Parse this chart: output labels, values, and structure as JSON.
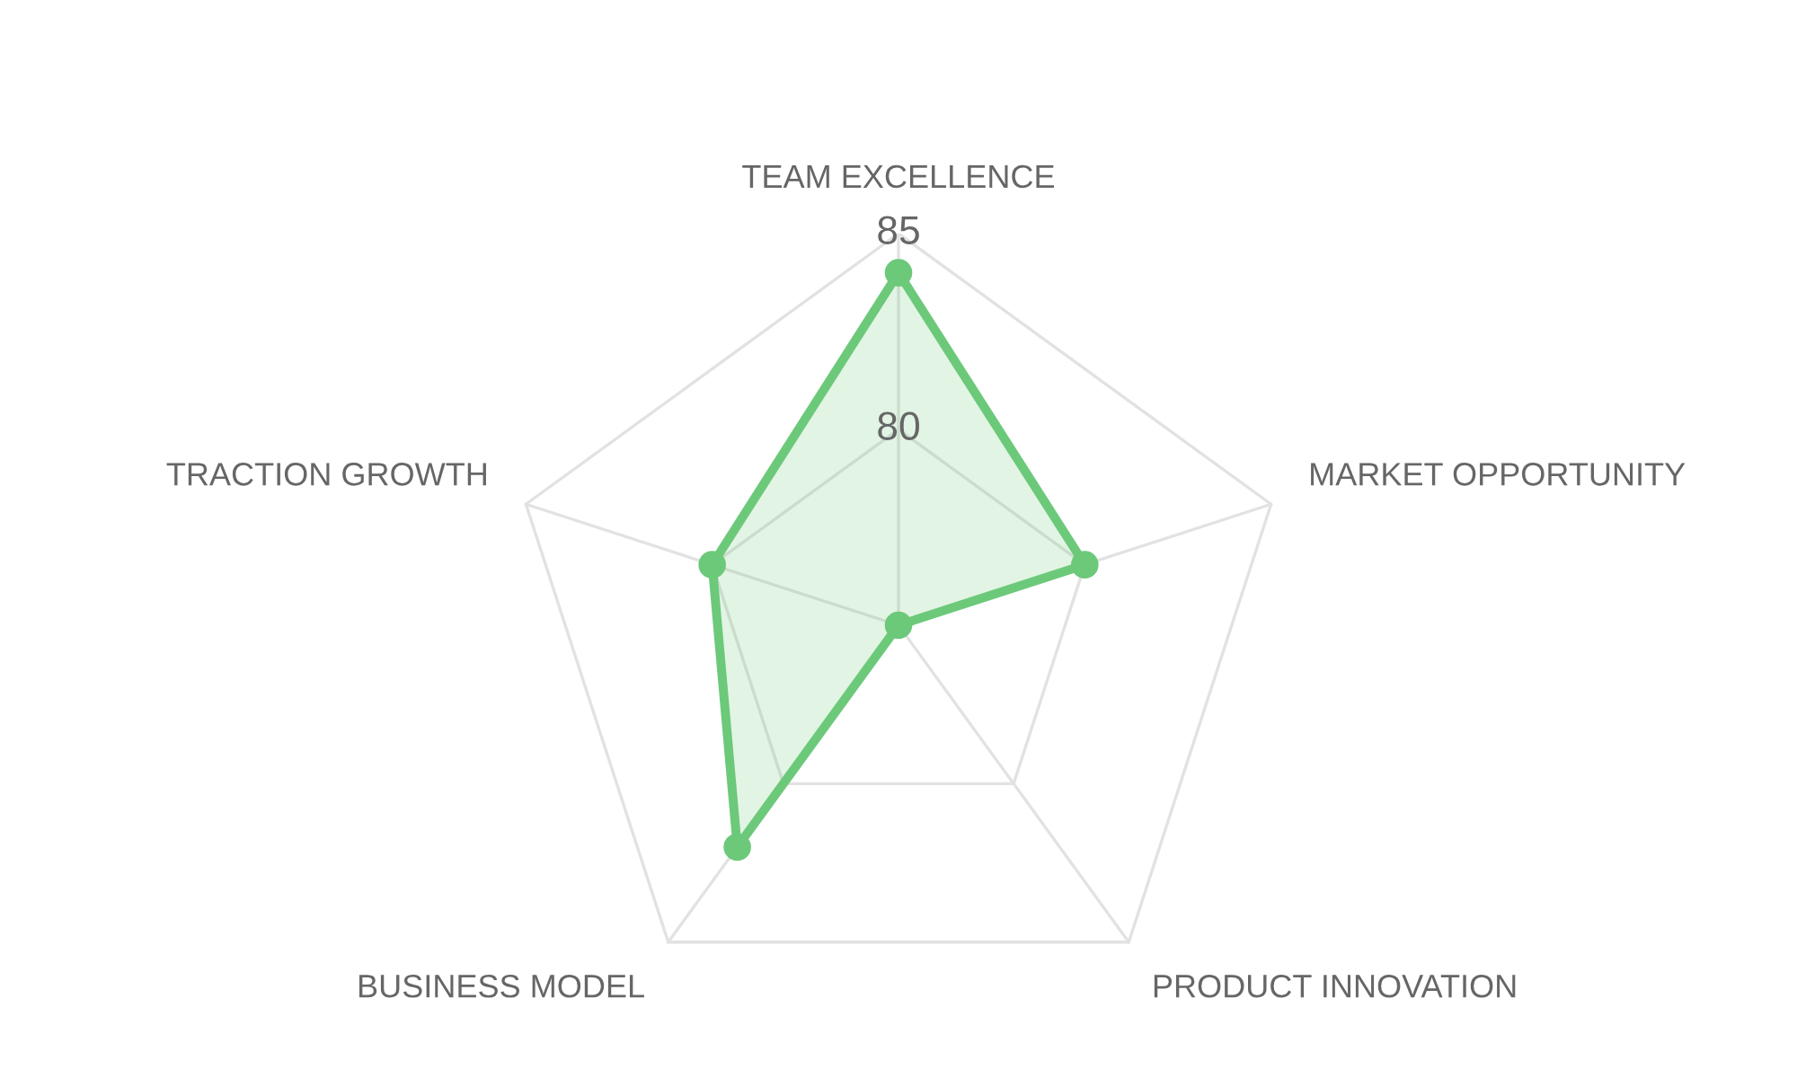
{
  "chart_data": {
    "type": "radar",
    "categories": [
      "TEAM EXCELLENCE",
      "MARKET OPPORTUNITY",
      "PRODUCT INNOVATION",
      "BUSINESS MODEL",
      "TRACTION GROWTH"
    ],
    "series": [
      {
        "color": "#6cc97a",
        "values": [
          84,
          80,
          75,
          82,
          80
        ]
      }
    ],
    "ylim": [
      75,
      85
    ],
    "yticks": [
      80,
      85
    ],
    "grid": true,
    "marker": "circle"
  }
}
